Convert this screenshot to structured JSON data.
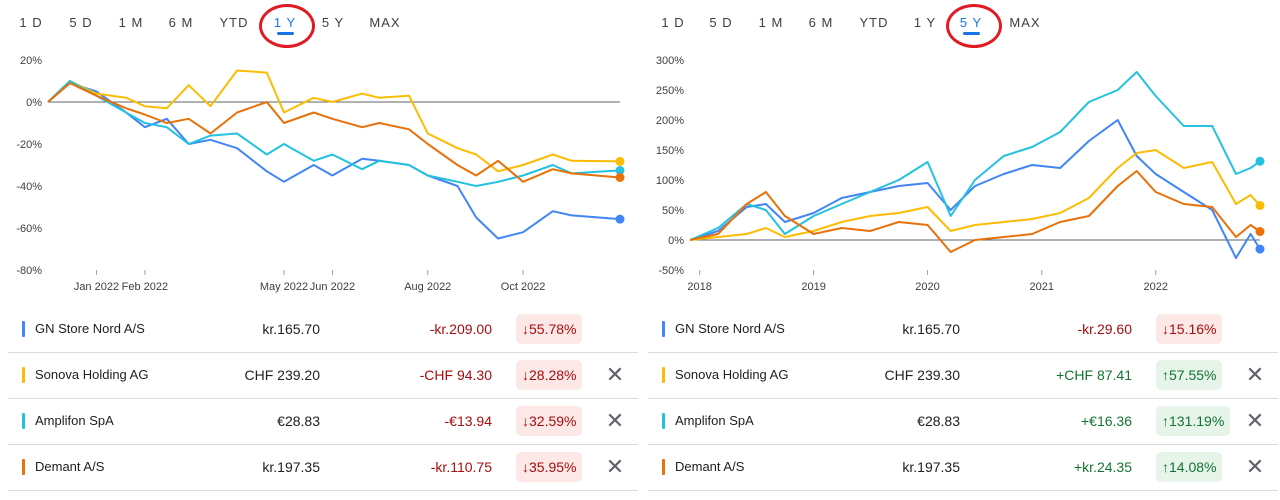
{
  "panels": [
    {
      "tabs": [
        "1 D",
        "5 D",
        "1 M",
        "6 M",
        "YTD",
        "1 Y",
        "5 Y",
        "MAX"
      ],
      "active_tab": "1 Y",
      "rows": [
        {
          "name": "GN Store Nord A/S",
          "price": "kr.165.70",
          "change": "-kr.209.00",
          "pct": "55.78%",
          "dir": "down",
          "removable": false,
          "color": "#4285f4"
        },
        {
          "name": "Sonova Holding AG",
          "price": "CHF 239.20",
          "change": "-CHF 94.30",
          "pct": "28.28%",
          "dir": "down",
          "removable": true,
          "color": "#fbbc04"
        },
        {
          "name": "Amplifon SpA",
          "price": "€28.83",
          "change": "-€13.94",
          "pct": "32.59%",
          "dir": "down",
          "removable": true,
          "color": "#24c1e0"
        },
        {
          "name": "Demant A/S",
          "price": "kr.197.35",
          "change": "-kr.110.75",
          "pct": "35.95%",
          "dir": "down",
          "removable": true,
          "color": "#e8710a"
        }
      ]
    },
    {
      "tabs": [
        "1 D",
        "5 D",
        "1 M",
        "6 M",
        "YTD",
        "1 Y",
        "5 Y",
        "MAX"
      ],
      "active_tab": "5 Y",
      "rows": [
        {
          "name": "GN Store Nord A/S",
          "price": "kr.165.70",
          "change": "-kr.29.60",
          "pct": "15.16%",
          "dir": "down",
          "removable": false,
          "color": "#4285f4"
        },
        {
          "name": "Sonova Holding AG",
          "price": "CHF 239.30",
          "change": "+CHF 87.41",
          "pct": "57.55%",
          "dir": "up",
          "removable": true,
          "color": "#fbbc04"
        },
        {
          "name": "Amplifon SpA",
          "price": "€28.83",
          "change": "+€16.36",
          "pct": "131.19%",
          "dir": "up",
          "removable": true,
          "color": "#24c1e0"
        },
        {
          "name": "Demant A/S",
          "price": "kr.197.35",
          "change": "+kr.24.35",
          "pct": "14.08%",
          "dir": "up",
          "removable": true,
          "color": "#e8710a"
        }
      ]
    }
  ],
  "chart_data": [
    {
      "type": "line",
      "x_unit": "date",
      "x_ticks": [
        {
          "label": "Jan 2022",
          "date": "2022-01-01"
        },
        {
          "label": "Feb 2022",
          "date": "2022-02-01"
        },
        {
          "label": "May 2022",
          "date": "2022-05-01"
        },
        {
          "label": "Jun 2022",
          "date": "2022-06-01"
        },
        {
          "label": "Aug 2022",
          "date": "2022-08-01"
        },
        {
          "label": "Oct 2022",
          "date": "2022-10-01"
        }
      ],
      "xlim": [
        "2021-12-01",
        "2022-12-02"
      ],
      "y_ticks": [
        {
          "label": "20%",
          "value": 20
        },
        {
          "label": "0%",
          "value": 0
        },
        {
          "label": "-20%",
          "value": -20
        },
        {
          "label": "-40%",
          "value": -40
        },
        {
          "label": "-60%",
          "value": -60
        },
        {
          "label": "-80%",
          "value": -80
        }
      ],
      "ylim": [
        -80,
        20
      ],
      "baseline": 0,
      "series": [
        {
          "name": "GN Store Nord A/S",
          "color": "#4285f4",
          "points": [
            [
              "2021-12-01",
              0
            ],
            [
              "2021-12-15",
              9
            ],
            [
              "2022-01-01",
              5
            ],
            [
              "2022-01-20",
              -5
            ],
            [
              "2022-02-01",
              -12
            ],
            [
              "2022-02-15",
              -8
            ],
            [
              "2022-03-01",
              -20
            ],
            [
              "2022-03-15",
              -18
            ],
            [
              "2022-04-01",
              -22
            ],
            [
              "2022-04-20",
              -33
            ],
            [
              "2022-05-01",
              -38
            ],
            [
              "2022-05-20",
              -30
            ],
            [
              "2022-06-01",
              -35
            ],
            [
              "2022-06-20",
              -27
            ],
            [
              "2022-07-01",
              -28
            ],
            [
              "2022-07-20",
              -30
            ],
            [
              "2022-08-01",
              -35
            ],
            [
              "2022-08-20",
              -40
            ],
            [
              "2022-09-01",
              -55
            ],
            [
              "2022-09-15",
              -65
            ],
            [
              "2022-10-01",
              -62
            ],
            [
              "2022-10-20",
              -52
            ],
            [
              "2022-11-01",
              -54
            ],
            [
              "2022-12-02",
              -55.78
            ]
          ]
        },
        {
          "name": "Sonova Holding AG",
          "color": "#fbbc04",
          "points": [
            [
              "2021-12-01",
              0
            ],
            [
              "2021-12-15",
              10
            ],
            [
              "2022-01-01",
              4
            ],
            [
              "2022-01-20",
              2
            ],
            [
              "2022-02-01",
              -2
            ],
            [
              "2022-02-15",
              -3
            ],
            [
              "2022-03-01",
              8
            ],
            [
              "2022-03-15",
              -2
            ],
            [
              "2022-04-01",
              15
            ],
            [
              "2022-04-20",
              14
            ],
            [
              "2022-05-01",
              -5
            ],
            [
              "2022-05-20",
              2
            ],
            [
              "2022-06-01",
              0
            ],
            [
              "2022-06-20",
              4
            ],
            [
              "2022-07-01",
              2
            ],
            [
              "2022-07-20",
              3
            ],
            [
              "2022-08-01",
              -15
            ],
            [
              "2022-08-20",
              -22
            ],
            [
              "2022-09-01",
              -25
            ],
            [
              "2022-09-15",
              -33
            ],
            [
              "2022-10-01",
              -30
            ],
            [
              "2022-10-20",
              -25
            ],
            [
              "2022-11-01",
              -28
            ],
            [
              "2022-12-02",
              -28.28
            ]
          ]
        },
        {
          "name": "Amplifon SpA",
          "color": "#24c1e0",
          "points": [
            [
              "2021-12-01",
              0
            ],
            [
              "2021-12-15",
              10
            ],
            [
              "2022-01-01",
              3
            ],
            [
              "2022-01-20",
              -5
            ],
            [
              "2022-02-01",
              -10
            ],
            [
              "2022-02-15",
              -12
            ],
            [
              "2022-03-01",
              -20
            ],
            [
              "2022-03-15",
              -16
            ],
            [
              "2022-04-01",
              -15
            ],
            [
              "2022-04-20",
              -25
            ],
            [
              "2022-05-01",
              -20
            ],
            [
              "2022-05-20",
              -28
            ],
            [
              "2022-06-01",
              -25
            ],
            [
              "2022-06-20",
              -32
            ],
            [
              "2022-07-01",
              -28
            ],
            [
              "2022-07-20",
              -30
            ],
            [
              "2022-08-01",
              -35
            ],
            [
              "2022-08-20",
              -38
            ],
            [
              "2022-09-01",
              -40
            ],
            [
              "2022-09-15",
              -38
            ],
            [
              "2022-10-01",
              -35
            ],
            [
              "2022-10-20",
              -30
            ],
            [
              "2022-11-01",
              -34
            ],
            [
              "2022-12-02",
              -32.59
            ]
          ]
        },
        {
          "name": "Demant A/S",
          "color": "#e8710a",
          "points": [
            [
              "2021-12-01",
              0
            ],
            [
              "2021-12-15",
              9
            ],
            [
              "2022-01-01",
              3
            ],
            [
              "2022-01-20",
              -3
            ],
            [
              "2022-02-01",
              -6
            ],
            [
              "2022-02-15",
              -10
            ],
            [
              "2022-03-01",
              -8
            ],
            [
              "2022-03-15",
              -15
            ],
            [
              "2022-04-01",
              -5
            ],
            [
              "2022-04-20",
              0
            ],
            [
              "2022-05-01",
              -10
            ],
            [
              "2022-05-20",
              -5
            ],
            [
              "2022-06-01",
              -8
            ],
            [
              "2022-06-20",
              -12
            ],
            [
              "2022-07-01",
              -10
            ],
            [
              "2022-07-20",
              -13
            ],
            [
              "2022-08-01",
              -20
            ],
            [
              "2022-08-20",
              -30
            ],
            [
              "2022-09-01",
              -35
            ],
            [
              "2022-09-15",
              -28
            ],
            [
              "2022-10-01",
              -38
            ],
            [
              "2022-10-20",
              -32
            ],
            [
              "2022-11-01",
              -34
            ],
            [
              "2022-12-02",
              -35.95
            ]
          ]
        }
      ]
    },
    {
      "type": "line",
      "x_unit": "date",
      "x_ticks": [
        {
          "label": "2018",
          "date": "2018-01-01"
        },
        {
          "label": "2019",
          "date": "2019-01-01"
        },
        {
          "label": "2020",
          "date": "2020-01-01"
        },
        {
          "label": "2021",
          "date": "2021-01-01"
        },
        {
          "label": "2022",
          "date": "2022-01-01"
        }
      ],
      "xlim": [
        "2017-12-01",
        "2022-12-01"
      ],
      "y_ticks": [
        {
          "label": "300%",
          "value": 300
        },
        {
          "label": "250%",
          "value": 250
        },
        {
          "label": "200%",
          "value": 200
        },
        {
          "label": "150%",
          "value": 150
        },
        {
          "label": "100%",
          "value": 100
        },
        {
          "label": "50%",
          "value": 50
        },
        {
          "label": "0%",
          "value": 0
        },
        {
          "label": "-50%",
          "value": -50
        }
      ],
      "ylim": [
        -50,
        300
      ],
      "baseline": 0,
      "series": [
        {
          "name": "GN Store Nord A/S",
          "color": "#4285f4",
          "points": [
            [
              "2017-12-01",
              0
            ],
            [
              "2018-03-01",
              15
            ],
            [
              "2018-06-01",
              55
            ],
            [
              "2018-08-01",
              60
            ],
            [
              "2018-10-01",
              30
            ],
            [
              "2019-01-01",
              45
            ],
            [
              "2019-04-01",
              70
            ],
            [
              "2019-07-01",
              80
            ],
            [
              "2019-10-01",
              90
            ],
            [
              "2020-01-01",
              95
            ],
            [
              "2020-03-15",
              50
            ],
            [
              "2020-06-01",
              90
            ],
            [
              "2020-09-01",
              110
            ],
            [
              "2020-12-01",
              125
            ],
            [
              "2021-03-01",
              120
            ],
            [
              "2021-06-01",
              165
            ],
            [
              "2021-09-01",
              200
            ],
            [
              "2021-11-01",
              140
            ],
            [
              "2022-01-01",
              110
            ],
            [
              "2022-04-01",
              80
            ],
            [
              "2022-07-01",
              50
            ],
            [
              "2022-09-15",
              -30
            ],
            [
              "2022-11-01",
              10
            ],
            [
              "2022-12-01",
              -15.16
            ]
          ]
        },
        {
          "name": "Sonova Holding AG",
          "color": "#fbbc04",
          "points": [
            [
              "2017-12-01",
              0
            ],
            [
              "2018-03-01",
              5
            ],
            [
              "2018-06-01",
              10
            ],
            [
              "2018-08-01",
              20
            ],
            [
              "2018-10-01",
              5
            ],
            [
              "2019-01-01",
              15
            ],
            [
              "2019-04-01",
              30
            ],
            [
              "2019-07-01",
              40
            ],
            [
              "2019-10-01",
              45
            ],
            [
              "2020-01-01",
              55
            ],
            [
              "2020-03-15",
              15
            ],
            [
              "2020-06-01",
              25
            ],
            [
              "2020-09-01",
              30
            ],
            [
              "2020-12-01",
              35
            ],
            [
              "2021-03-01",
              45
            ],
            [
              "2021-06-01",
              70
            ],
            [
              "2021-09-01",
              120
            ],
            [
              "2021-11-01",
              145
            ],
            [
              "2022-01-01",
              150
            ],
            [
              "2022-04-01",
              120
            ],
            [
              "2022-07-01",
              130
            ],
            [
              "2022-09-15",
              60
            ],
            [
              "2022-11-01",
              75
            ],
            [
              "2022-12-01",
              57.55
            ]
          ]
        },
        {
          "name": "Amplifon SpA",
          "color": "#24c1e0",
          "points": [
            [
              "2017-12-01",
              0
            ],
            [
              "2018-03-01",
              20
            ],
            [
              "2018-06-01",
              60
            ],
            [
              "2018-08-01",
              50
            ],
            [
              "2018-10-01",
              10
            ],
            [
              "2019-01-01",
              40
            ],
            [
              "2019-04-01",
              60
            ],
            [
              "2019-07-01",
              80
            ],
            [
              "2019-10-01",
              100
            ],
            [
              "2020-01-01",
              130
            ],
            [
              "2020-03-15",
              40
            ],
            [
              "2020-06-01",
              100
            ],
            [
              "2020-09-01",
              140
            ],
            [
              "2020-12-01",
              155
            ],
            [
              "2021-03-01",
              180
            ],
            [
              "2021-06-01",
              230
            ],
            [
              "2021-09-01",
              250
            ],
            [
              "2021-11-01",
              280
            ],
            [
              "2022-01-01",
              240
            ],
            [
              "2022-04-01",
              190
            ],
            [
              "2022-07-01",
              190
            ],
            [
              "2022-09-15",
              110
            ],
            [
              "2022-11-01",
              120
            ],
            [
              "2022-12-01",
              131.19
            ]
          ]
        },
        {
          "name": "Demant A/S",
          "color": "#e8710a",
          "points": [
            [
              "2017-12-01",
              0
            ],
            [
              "2018-03-01",
              10
            ],
            [
              "2018-06-01",
              60
            ],
            [
              "2018-08-01",
              80
            ],
            [
              "2018-10-01",
              40
            ],
            [
              "2019-01-01",
              10
            ],
            [
              "2019-04-01",
              20
            ],
            [
              "2019-07-01",
              15
            ],
            [
              "2019-10-01",
              30
            ],
            [
              "2020-01-01",
              25
            ],
            [
              "2020-03-15",
              -20
            ],
            [
              "2020-06-01",
              0
            ],
            [
              "2020-09-01",
              5
            ],
            [
              "2020-12-01",
              10
            ],
            [
              "2021-03-01",
              30
            ],
            [
              "2021-06-01",
              40
            ],
            [
              "2021-09-01",
              90
            ],
            [
              "2021-11-01",
              115
            ],
            [
              "2022-01-01",
              80
            ],
            [
              "2022-04-01",
              60
            ],
            [
              "2022-07-01",
              55
            ],
            [
              "2022-09-15",
              5
            ],
            [
              "2022-11-01",
              25
            ],
            [
              "2022-12-01",
              14.08
            ]
          ]
        }
      ]
    }
  ]
}
